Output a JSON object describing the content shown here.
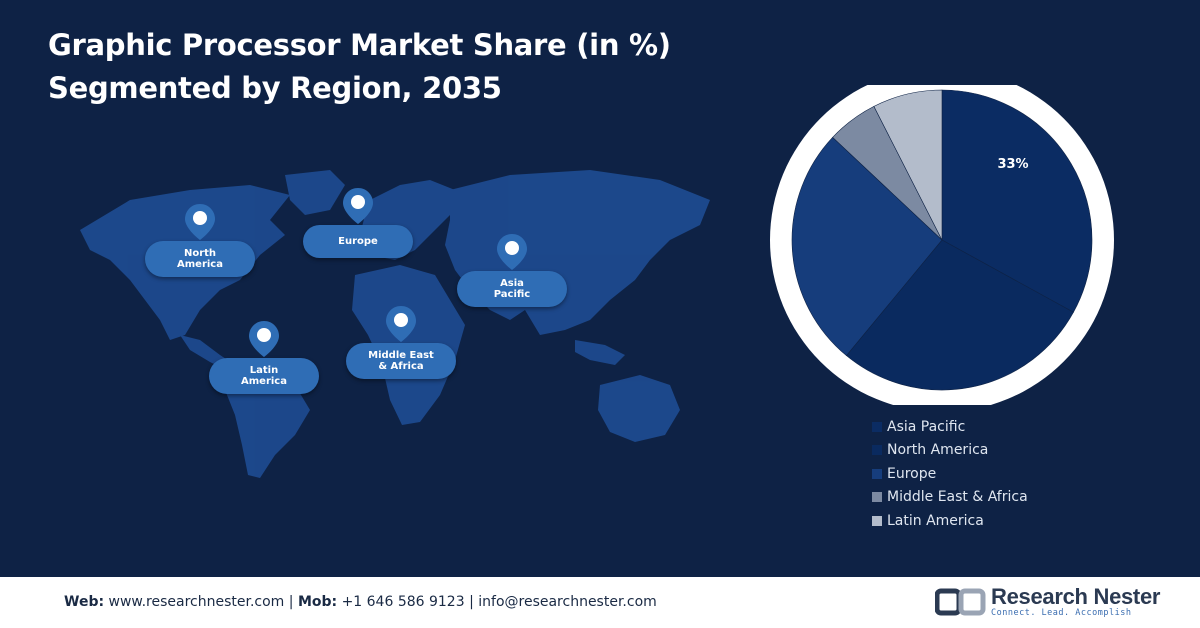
{
  "header": {
    "title_line1": "Graphic Processor Market Share (in %)",
    "title_line2": "Segmented by Region, 2035"
  },
  "map_pins": [
    {
      "label": "North\nAmerica"
    },
    {
      "label": "Europe"
    },
    {
      "label": "Asia\nPacific"
    },
    {
      "label": "Latin\nAmerica"
    },
    {
      "label": "Middle East\n& Africa"
    }
  ],
  "chart_data": {
    "type": "pie",
    "title": "Graphic Processor Market Share (in %) Segmented by Region, 2035",
    "slices": [
      {
        "name": "Asia Pacific",
        "value": 33,
        "label": "33%",
        "color": "#0b2c63"
      },
      {
        "name": "North America",
        "value": 28,
        "label": "",
        "color": "#0a2a5f"
      },
      {
        "name": "Europe",
        "value": 26,
        "label": "",
        "color": "#163d7c"
      },
      {
        "name": "Middle East & Africa",
        "value": 5.5,
        "label": "",
        "color": "#7c8aa2"
      },
      {
        "name": "Latin America",
        "value": 7.5,
        "label": "",
        "color": "#b3bccb"
      }
    ],
    "start_angle_deg": 0,
    "direction": "clockwise",
    "legend_position": "bottom-right"
  },
  "footer": {
    "web_label": "Web:",
    "web_value": "www.researchnester.com",
    "mob_label": "Mob:",
    "mob_value": "+1 646 586 9123",
    "email": "info@researchnester.com",
    "separator": "|",
    "brand_name": "Research Nester",
    "brand_tagline": "Connect. Lead. Accomplish"
  }
}
